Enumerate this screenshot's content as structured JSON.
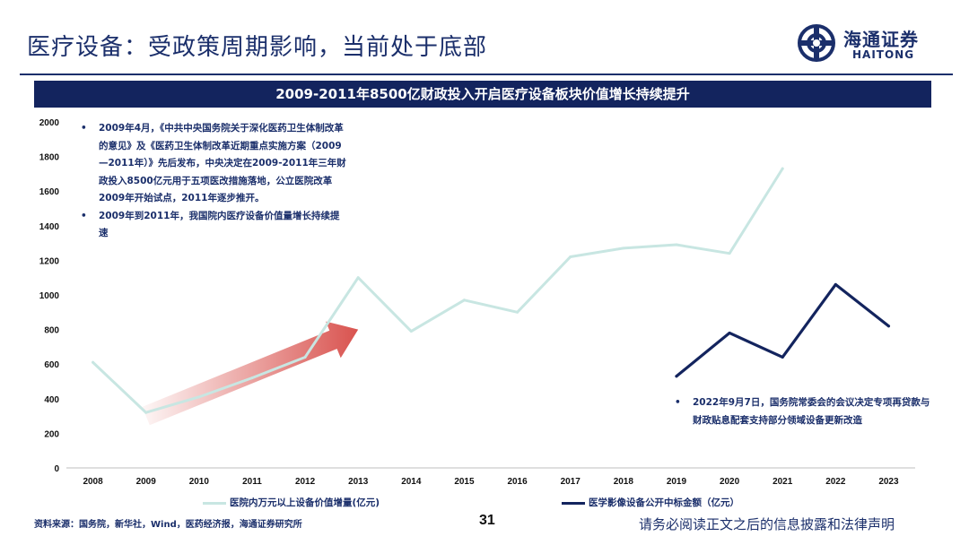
{
  "header": {
    "title": "医疗设备：受政策周期影响，当前处于底部",
    "logo_cn": "海通证券",
    "logo_en": "HAITONG"
  },
  "banner": "2009-2011年8500亿财政投入开启医疗设备板块价值增长持续提升",
  "notes_left": [
    "2009年4月，《中共中央国务院关于深化医药卫生体制改革的意见》及《医药卫生体制改革近期重点实施方案（2009—2011年）》先后发布，中央决定在2009-2011年三年财政投入8500亿元用于五项医改措施落地，公立医院改革2009年开始试点，2011年逐步推开。",
    "2009年到2011年，我国院内医疗设备价值量增长持续提速"
  ],
  "notes_right": [
    "2022年9月7日，国务院常委会的会议决定专项再贷款与财政贴息配套支持部分领域设备更新改造"
  ],
  "bullet": "•",
  "footer": {
    "source": "资料来源：国务院，新华社，Wind，医药经济报，海通证券研究所",
    "page": "31",
    "disclaimer": "请务必阅读正文之后的信息披露和法律声明"
  },
  "colors": {
    "navy": "#13245e",
    "series1": "#c8e6e2",
    "series2": "#13245e",
    "arrow": "#d9534f"
  },
  "chart_data": {
    "type": "line",
    "categories": [
      "2008",
      "2009",
      "2010",
      "2011",
      "2012",
      "2013",
      "2014",
      "2015",
      "2016",
      "2017",
      "2018",
      "2019",
      "2020",
      "2021",
      "2022",
      "2023"
    ],
    "ylim": [
      0,
      2000
    ],
    "yticks": [
      0,
      200,
      400,
      600,
      800,
      1000,
      1200,
      1400,
      1600,
      1800,
      2000
    ],
    "grid": false,
    "legend_position": "bottom",
    "series": [
      {
        "name": "医院内万元以上设备价值增量(亿元)",
        "color": "#c8e6e2",
        "values": [
          610,
          320,
          410,
          520,
          640,
          1100,
          790,
          970,
          900,
          1220,
          1270,
          1290,
          1240,
          1730,
          null,
          null
        ]
      },
      {
        "name": "医学影像设备公开中标金额（亿元）",
        "color": "#13245e",
        "values": [
          null,
          null,
          null,
          null,
          null,
          null,
          null,
          null,
          null,
          null,
          null,
          530,
          780,
          640,
          1060,
          820
        ]
      }
    ],
    "annotation_arrow": {
      "from": [
        "2009",
        300
      ],
      "to": [
        "2013",
        800
      ]
    }
  }
}
